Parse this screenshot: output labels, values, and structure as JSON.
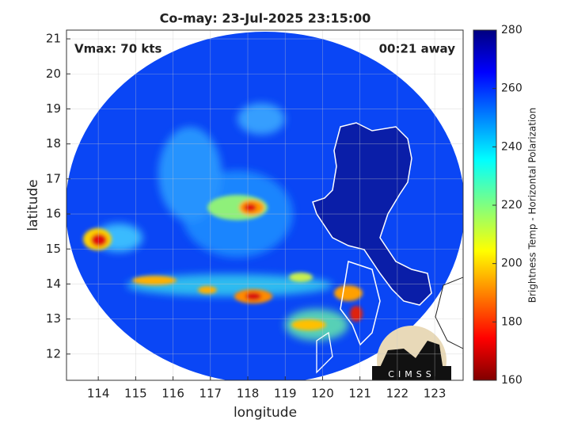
{
  "chart_data": {
    "type": "image",
    "title": "Co-may: 23-Jul-2025 23:15:00",
    "annotations": [
      "Vmax: 70 kts",
      "00:21 away"
    ],
    "xlabel": "longitude",
    "ylabel": "latitude",
    "xlim": [
      113.15,
      123.76
    ],
    "ylim": [
      11.25,
      21.25
    ],
    "xticks": [
      114,
      115,
      116,
      117,
      118,
      119,
      120,
      121,
      122,
      123
    ],
    "yticks": [
      12,
      13,
      14,
      15,
      16,
      17,
      18,
      19,
      20,
      21
    ],
    "grid": true,
    "colorbar": {
      "label": "Brightness Temp - Horizontal Polarization",
      "lim": [
        160,
        280
      ],
      "ticks": [
        160,
        180,
        200,
        220,
        240,
        260,
        280
      ]
    },
    "logo": "CIMSS"
  }
}
